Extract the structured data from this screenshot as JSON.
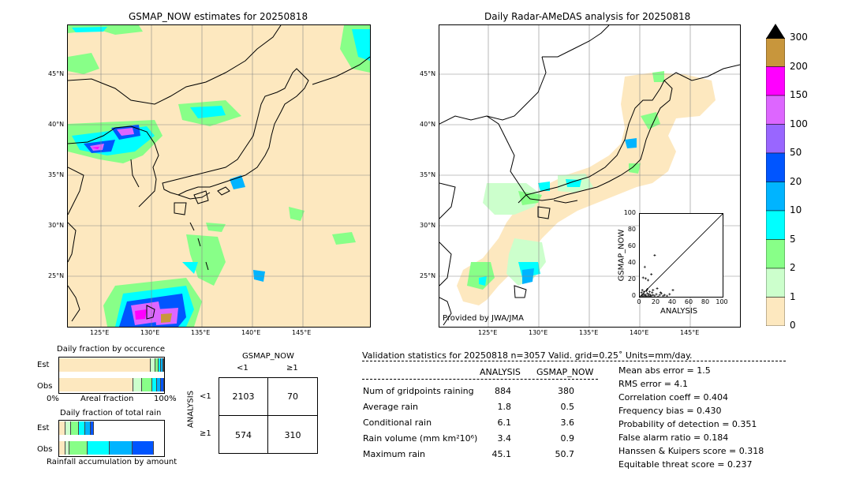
{
  "left_map": {
    "title": "GSMAP_NOW estimates for 20250818",
    "lat_labels": [
      "45°N",
      "40°N",
      "35°N",
      "30°N",
      "25°N"
    ],
    "lon_labels": [
      "125°E",
      "130°E",
      "135°E",
      "140°E",
      "145°E"
    ]
  },
  "right_map": {
    "title": "Daily Radar-AMeDAS analysis for 20250818",
    "lat_labels": [
      "45°N",
      "40°N",
      "35°N",
      "30°N",
      "25°N"
    ],
    "lon_labels": [
      "125°E",
      "130°E",
      "135°E",
      "140°E",
      "145°E"
    ],
    "credit": "Provided by JWA/JMA"
  },
  "colorbar": {
    "ticks": [
      "300",
      "200",
      "150",
      "100",
      "50",
      "20",
      "10",
      "5",
      "2",
      "1",
      "0"
    ],
    "colors": [
      "#c8963c",
      "#ff00ff",
      "#dd66ff",
      "#9966ff",
      "#0055ff",
      "#00b4ff",
      "#00ffff",
      "#88ff88",
      "#ccffcc",
      "#fde8bf"
    ]
  },
  "chart_data": [
    {
      "type": "scatter",
      "title": "",
      "xlabel": "ANALYSIS",
      "ylabel": "GSMAP_NOW",
      "xlim": [
        0,
        100
      ],
      "ylim": [
        0,
        100
      ],
      "ticks": [
        "0",
        "20",
        "40",
        "60",
        "80",
        "100"
      ],
      "points": [
        [
          2,
          1
        ],
        [
          3,
          2
        ],
        [
          4,
          0
        ],
        [
          5,
          3
        ],
        [
          6,
          1
        ],
        [
          7,
          2
        ],
        [
          8,
          0
        ],
        [
          9,
          4
        ],
        [
          10,
          1
        ],
        [
          11,
          3
        ],
        [
          12,
          0
        ],
        [
          13,
          2
        ],
        [
          14,
          1
        ],
        [
          15,
          5
        ],
        [
          16,
          2
        ],
        [
          18,
          1
        ],
        [
          20,
          3
        ],
        [
          22,
          0
        ],
        [
          24,
          2
        ],
        [
          26,
          4
        ],
        [
          28,
          1
        ],
        [
          30,
          2
        ],
        [
          33,
          1
        ],
        [
          36,
          3
        ],
        [
          4,
          23
        ],
        [
          7,
          22
        ],
        [
          10,
          20
        ],
        [
          6,
          36
        ],
        [
          14,
          27
        ],
        [
          18,
          50
        ],
        [
          3,
          8
        ],
        [
          5,
          6
        ],
        [
          8,
          7
        ],
        [
          12,
          6
        ],
        [
          16,
          8
        ],
        [
          21,
          10
        ],
        [
          25,
          5
        ],
        [
          40,
          8
        ],
        [
          2,
          5
        ],
        [
          9,
          9
        ]
      ]
    },
    {
      "type": "bar",
      "title": "Daily fraction by occurence",
      "categories": [
        "Est",
        "Obs"
      ],
      "xlabel_left": "0%",
      "xlabel_mid": "Areal fraction",
      "xlabel_right": "100%",
      "series": [
        {
          "name": "<1",
          "color": "#fde8bf",
          "values": [
            87,
            71
          ]
        },
        {
          "name": "1-2",
          "color": "#ccffcc",
          "values": [
            5,
            8
          ]
        },
        {
          "name": "2-5",
          "color": "#88ff88",
          "values": [
            3,
            10
          ]
        },
        {
          "name": "5-10",
          "color": "#00ffff",
          "values": [
            2,
            4
          ]
        },
        {
          "name": "10-20",
          "color": "#00b4ff",
          "values": [
            2,
            4
          ]
        },
        {
          "name": "20-50",
          "color": "#0055ff",
          "values": [
            1,
            3
          ]
        }
      ]
    },
    {
      "type": "bar",
      "title": "Daily fraction of total rain",
      "categories": [
        "Est",
        "Obs"
      ],
      "xlabel": "Rainfall accumulation by amount",
      "series": [
        {
          "name": "<1",
          "color": "#fde8bf",
          "values": [
            6,
            6
          ]
        },
        {
          "name": "1-2",
          "color": "#ccffcc",
          "values": [
            5,
            4
          ]
        },
        {
          "name": "2-5",
          "color": "#88ff88",
          "values": [
            8,
            17
          ]
        },
        {
          "name": "5-10",
          "color": "#00ffff",
          "values": [
            6,
            21
          ]
        },
        {
          "name": "10-20",
          "color": "#00b4ff",
          "values": [
            5,
            22
          ]
        },
        {
          "name": "20-50",
          "color": "#0055ff",
          "values": [
            3,
            20
          ]
        }
      ]
    }
  ],
  "contingency": {
    "title": "GSMAP_NOW",
    "col_labels": [
      "<1",
      "≥1"
    ],
    "row_title": "ANALYSIS",
    "row_labels": [
      "<1",
      "≥1"
    ],
    "cells": [
      "2103",
      "70",
      "574",
      "310"
    ]
  },
  "validation": {
    "header": "Validation statistics for 20250818  n=3057 Valid. grid=0.25˚ Units=mm/day.",
    "col1": "ANALYSIS",
    "col2": "GSMAP_NOW",
    "rows": [
      {
        "label": "Num of gridpoints raining",
        "a": "884",
        "g": "380"
      },
      {
        "label": "Average rain",
        "a": "1.8",
        "g": "0.5"
      },
      {
        "label": "Conditional rain",
        "a": "6.1",
        "g": "3.6"
      },
      {
        "label": "Rain volume (mm km²10⁶)",
        "a": "3.4",
        "g": "0.9"
      },
      {
        "label": "Maximum rain",
        "a": "45.1",
        "g": "50.7"
      }
    ],
    "scores": [
      "Mean abs error =    1.5",
      "RMS error =    4.1",
      "Correlation coeff =  0.404",
      "Frequency bias =  0.430",
      "Probability of detection =  0.351",
      "False alarm ratio =  0.184",
      "Hanssen & Kuipers score =  0.318",
      "Equitable threat score =  0.237"
    ]
  }
}
